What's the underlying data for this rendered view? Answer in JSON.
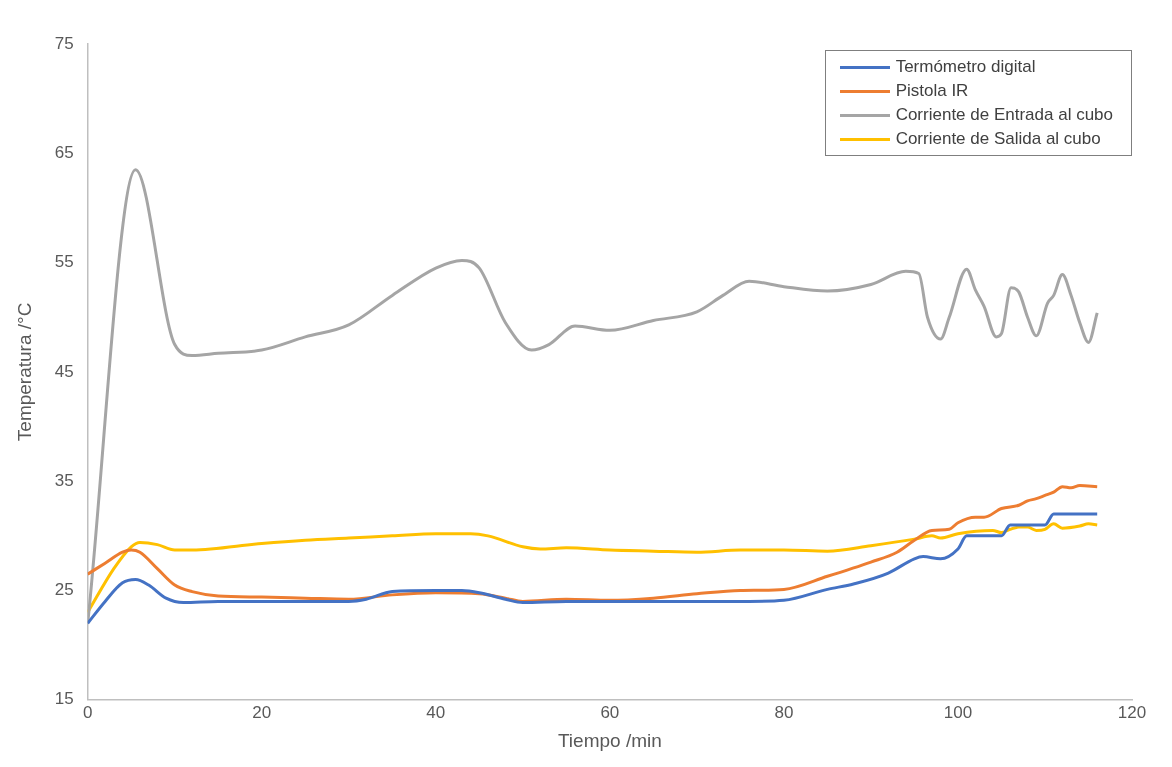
{
  "chart_data": {
    "type": "line",
    "xlabel": "Tiempo /min",
    "ylabel": "Temperatura /°C",
    "xlim": [
      0,
      120
    ],
    "xticks": [
      0,
      20,
      40,
      60,
      80,
      100,
      120
    ],
    "ylim": [
      15,
      75
    ],
    "yticks": [
      15,
      25,
      35,
      45,
      55,
      65,
      75
    ],
    "grid": false,
    "legend": "top right",
    "marker": "none",
    "line_style": "solid",
    "series": [
      {
        "name": "Termómetro digital",
        "color": "#4472c4",
        "x": [
          0,
          2,
          4,
          5.5,
          7,
          9,
          11,
          15,
          20,
          25,
          30,
          32,
          35,
          40,
          43,
          45,
          48,
          50,
          55,
          60,
          70,
          76,
          80,
          85,
          88,
          92,
          95,
          96,
          98,
          100,
          101,
          104,
          105,
          106,
          108,
          110,
          111,
          116
        ],
        "values": [
          22,
          24,
          25.7,
          26,
          25.5,
          24.3,
          23.9,
          24,
          24,
          24,
          24,
          24.2,
          24.9,
          25,
          25,
          24.8,
          24.2,
          23.9,
          24,
          24,
          24,
          24,
          24.1,
          25.1,
          25.6,
          26.6,
          27.9,
          28.1,
          27.9,
          28.8,
          30,
          30,
          30,
          31,
          31,
          31,
          32,
          32
        ]
      },
      {
        "name": "Pistola IR",
        "color": "#ed7d31",
        "x": [
          0,
          2,
          4,
          5,
          6,
          8,
          10,
          12,
          15,
          20,
          25,
          30,
          35,
          40,
          45,
          48,
          50,
          55,
          60,
          65,
          70,
          75,
          80,
          85,
          90,
          93,
          95,
          97,
          99,
          100,
          102,
          103,
          105,
          107,
          108,
          109,
          110,
          111,
          112,
          113,
          114,
          116
        ],
        "values": [
          26.5,
          27.5,
          28.5,
          28.7,
          28.5,
          27,
          25.5,
          24.9,
          24.5,
          24.4,
          24.3,
          24.2,
          24.6,
          24.8,
          24.7,
          24.3,
          24,
          24.2,
          24.1,
          24.3,
          24.7,
          25,
          25.1,
          26.3,
          27.6,
          28.5,
          29.6,
          30.5,
          30.6,
          31.2,
          31.7,
          31.7,
          32.5,
          32.8,
          33.2,
          33.4,
          33.7,
          34,
          34.5,
          34.4,
          34.6,
          34.5
        ]
      },
      {
        "name": "Corriente de Entrada al cubo",
        "color": "#a5a5a5",
        "x": [
          0,
          5.5,
          10,
          12,
          15,
          20,
          25,
          30,
          35,
          40,
          43,
          45,
          48,
          51,
          53,
          56,
          60,
          65,
          70,
          73,
          76,
          80,
          85,
          90,
          94,
          95.5,
          96.5,
          98,
          99,
          101,
          102,
          103,
          104.4,
          105,
          106.1,
          107,
          108,
          109,
          110.3,
          111,
          112,
          113,
          114,
          115,
          116
        ],
        "values": [
          22,
          63.5,
          47.5,
          46.5,
          46.7,
          47,
          48.2,
          49.3,
          52,
          54.5,
          55.2,
          54.5,
          49.5,
          47,
          47.5,
          49.2,
          48.8,
          49.7,
          50.5,
          52,
          53.3,
          52.8,
          52.4,
          53,
          54.2,
          54,
          50,
          48,
          50,
          54.4,
          52.5,
          51,
          48.2,
          48.5,
          52.7,
          52.3,
          50,
          48.3,
          51.3,
          52,
          53.9,
          52,
          49.5,
          47.7,
          50.4
        ]
      },
      {
        "name": "Corriente de Salida al cubo",
        "color": "#ffc000",
        "x": [
          0,
          3,
          5,
          6,
          8,
          10,
          12,
          20,
          25,
          30,
          35,
          40,
          44,
          46,
          50,
          52,
          55,
          60,
          65,
          70,
          75,
          80,
          85,
          90,
          95,
          97,
          98,
          100,
          104,
          105,
          106,
          107,
          108,
          109,
          110,
          111,
          112,
          114,
          115,
          116
        ],
        "values": [
          23,
          27,
          29,
          29.4,
          29.2,
          28.7,
          28.7,
          29.3,
          29.6,
          29.8,
          30,
          30.2,
          30.2,
          30,
          29,
          28.8,
          28.9,
          28.7,
          28.6,
          28.5,
          28.7,
          28.7,
          28.6,
          29.1,
          29.7,
          30,
          29.8,
          30.2,
          30.5,
          30.3,
          30.6,
          30.8,
          30.8,
          30.5,
          30.6,
          31.1,
          30.7,
          30.9,
          31.1,
          31
        ]
      }
    ]
  }
}
